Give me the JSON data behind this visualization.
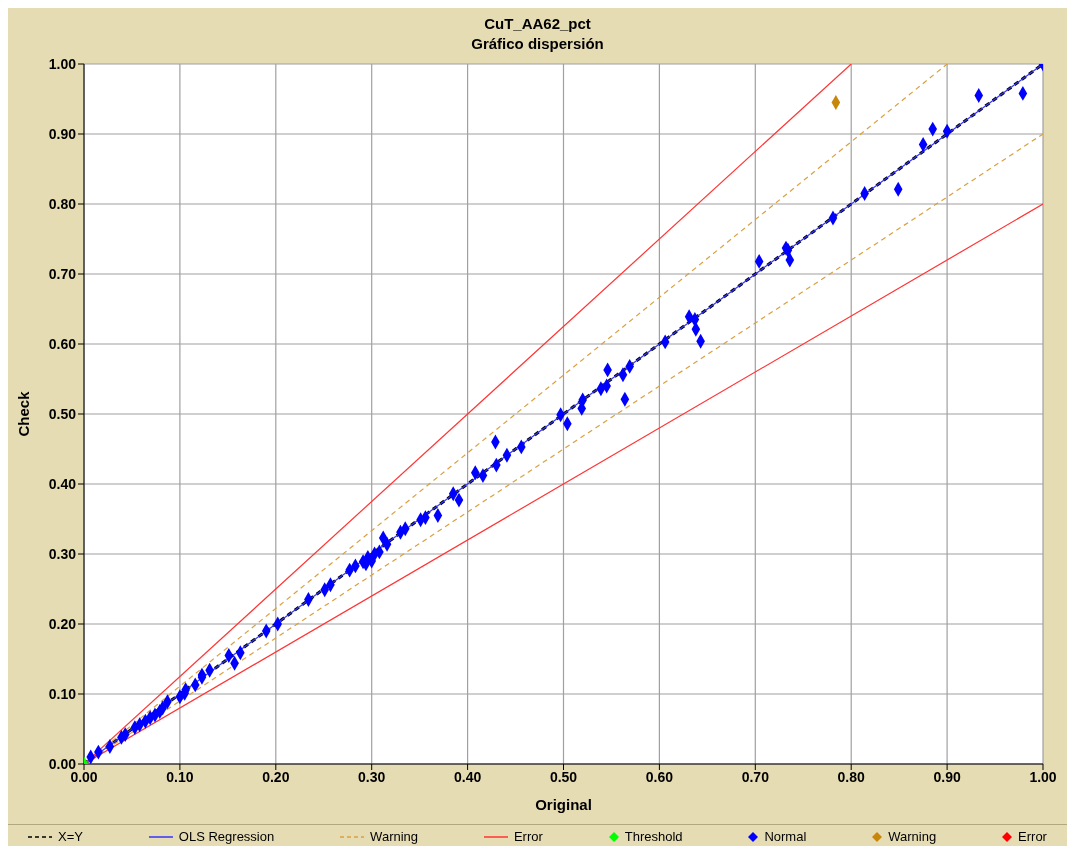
{
  "chart_data": {
    "type": "scatter",
    "title": "CuT_AA62_pct",
    "subtitle": "Gráfico dispersión",
    "xlabel": "Original",
    "ylabel": "Check",
    "xlim": [
      0,
      1
    ],
    "ylim": [
      0,
      1
    ],
    "xticks": [
      {
        "value": 0,
        "label": "0.00"
      },
      {
        "value": 0.1,
        "label": "0.10"
      },
      {
        "value": 0.2,
        "label": "0.20"
      },
      {
        "value": 0.3,
        "label": "0.30"
      },
      {
        "value": 0.4,
        "label": "0.40"
      },
      {
        "value": 0.5,
        "label": "0.50"
      },
      {
        "value": 0.6,
        "label": "0.60"
      },
      {
        "value": 0.7,
        "label": "0.70"
      },
      {
        "value": 0.8,
        "label": "0.80"
      },
      {
        "value": 0.9,
        "label": "0.90"
      },
      {
        "value": 1,
        "label": "1.00"
      }
    ],
    "yticks": [
      {
        "value": 0,
        "label": "0.00"
      },
      {
        "value": 0.1,
        "label": "0.10"
      },
      {
        "value": 0.2,
        "label": "0.20"
      },
      {
        "value": 0.3,
        "label": "0.30"
      },
      {
        "value": 0.4,
        "label": "0.40"
      },
      {
        "value": 0.5,
        "label": "0.50"
      },
      {
        "value": 0.6,
        "label": "0.60"
      },
      {
        "value": 0.7,
        "label": "0.70"
      },
      {
        "value": 0.8,
        "label": "0.80"
      },
      {
        "value": 0.9,
        "label": "0.90"
      },
      {
        "value": 1,
        "label": "1.00"
      }
    ],
    "grid": true,
    "legend": "bottom",
    "series": [
      {
        "name": "X=Y",
        "type": "line",
        "color": "#000000",
        "line_style": "dashed",
        "marker": "none",
        "x": [
          0,
          1
        ],
        "values": [
          0,
          1
        ]
      },
      {
        "name": "OLS Regression",
        "type": "line",
        "color": "#3333ff",
        "line_style": "solid",
        "marker": "none",
        "x": [
          0,
          1
        ],
        "values": [
          0,
          1
        ]
      },
      {
        "name": "Warning",
        "type": "line",
        "color": "#daa040",
        "line_style": "dashed",
        "marker": "none",
        "x": [
          0,
          0.9
        ],
        "values": [
          0,
          1
        ]
      },
      {
        "type": "line",
        "color": "#daa040",
        "line_style": "dashed",
        "marker": "none",
        "x": [
          0,
          1
        ],
        "values": [
          0,
          0.9
        ]
      },
      {
        "name": "Error",
        "type": "line",
        "color": "#ff3333",
        "line_style": "solid",
        "marker": "none",
        "x": [
          0,
          0.8
        ],
        "values": [
          0,
          1
        ]
      },
      {
        "type": "line",
        "color": "#ff3333",
        "line_style": "solid",
        "marker": "none",
        "x": [
          0,
          1
        ],
        "values": [
          0,
          0.8
        ]
      },
      {
        "name": "Threshold",
        "color": "#00ff00",
        "marker": "diamond",
        "x": [
          0
        ],
        "values": [
          0
        ]
      },
      {
        "name": "Normal",
        "color": "#0000ff",
        "marker": "diamond",
        "x": [
          1.0,
          0.979,
          0.933,
          0.885,
          0.9,
          0.875,
          0.849,
          0.814,
          0.781,
          0.704,
          0.732,
          0.734,
          0.736,
          0.631,
          0.637,
          0.638,
          0.643,
          0.606,
          0.569,
          0.562,
          0.546,
          0.545,
          0.539,
          0.564,
          0.52,
          0.519,
          0.497,
          0.504,
          0.429,
          0.456,
          0.441,
          0.43,
          0.408,
          0.416,
          0.385,
          0.391,
          0.369,
          0.356,
          0.351,
          0.335,
          0.33,
          0.312,
          0.316,
          0.308,
          0.303,
          0.296,
          0.291,
          0.294,
          0.3,
          0.283,
          0.277,
          0.257,
          0.234,
          0.251,
          0.202,
          0.19,
          0.163,
          0.157,
          0.151,
          0.131,
          0.123,
          0.123,
          0.116,
          0.106,
          0.105,
          0.1,
          0.087,
          0.082,
          0.079,
          0.074,
          0.069,
          0.064,
          0.058,
          0.053,
          0.043,
          0.039,
          0.027,
          0.015,
          0.007
        ],
        "values": [
          1.0,
          0.958,
          0.955,
          0.907,
          0.904,
          0.885,
          0.821,
          0.815,
          0.78,
          0.718,
          0.737,
          0.734,
          0.72,
          0.639,
          0.635,
          0.621,
          0.604,
          0.603,
          0.568,
          0.556,
          0.563,
          0.54,
          0.536,
          0.521,
          0.52,
          0.508,
          0.499,
          0.486,
          0.46,
          0.453,
          0.441,
          0.427,
          0.416,
          0.412,
          0.386,
          0.377,
          0.355,
          0.352,
          0.349,
          0.336,
          0.331,
          0.323,
          0.314,
          0.303,
          0.3,
          0.295,
          0.289,
          0.286,
          0.29,
          0.283,
          0.277,
          0.256,
          0.235,
          0.249,
          0.2,
          0.19,
          0.159,
          0.144,
          0.155,
          0.134,
          0.127,
          0.124,
          0.113,
          0.106,
          0.101,
          0.096,
          0.089,
          0.08,
          0.075,
          0.07,
          0.066,
          0.061,
          0.056,
          0.052,
          0.042,
          0.038,
          0.025,
          0.017,
          0.01
        ]
      },
      {
        "name": "Warning",
        "color": "#c8860b",
        "marker": "diamond",
        "x": [
          0.784
        ],
        "values": [
          0.945
        ]
      },
      {
        "name": "Error",
        "color": "#ff0000",
        "marker": "diamond"
      }
    ]
  }
}
